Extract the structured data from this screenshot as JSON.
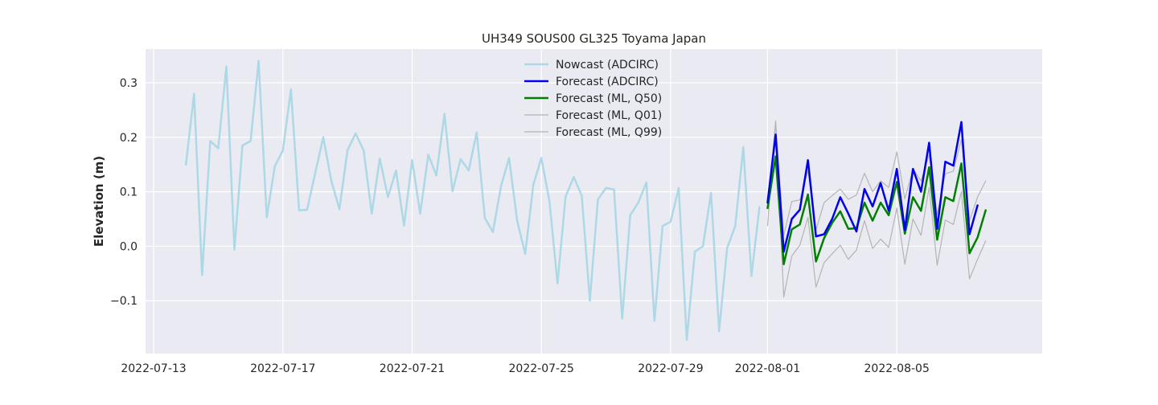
{
  "chart_data": {
    "type": "line",
    "title": "UH349 SOUS00 GL325 Toyama Japan",
    "xlabel": "",
    "ylabel": "Elevation (m)",
    "x_type": "date",
    "xlim": [
      "2022-07-12 18:00",
      "2022-08-09 12:00"
    ],
    "ylim": [
      -0.197,
      0.362
    ],
    "x_ticks": [
      "2022-07-13",
      "2022-07-17",
      "2022-07-21",
      "2022-07-25",
      "2022-07-29",
      "2022-08-01",
      "2022-08-05"
    ],
    "y_ticks": [
      -0.1,
      0.0,
      0.1,
      0.2,
      0.3
    ],
    "y_tick_labels": [
      "−0.1",
      "0.0",
      "0.1",
      "0.2",
      "0.3"
    ],
    "grid": true,
    "background": "#eaeaf2",
    "legend_position": "top-center",
    "series": [
      {
        "name": "Nowcast (ADCIRC)",
        "color": "#add8e6",
        "width": 2.5,
        "start": "2022-07-14 00:00",
        "step_hours": 6,
        "values": [
          0.15,
          0.28,
          -0.053,
          0.193,
          0.18,
          0.33,
          -0.006,
          0.185,
          0.193,
          0.34,
          0.053,
          0.147,
          0.176,
          0.288,
          0.066,
          0.067,
          0.134,
          0.2,
          0.12,
          0.068,
          0.176,
          0.207,
          0.176,
          0.06,
          0.161,
          0.09,
          0.139,
          0.038,
          0.158,
          0.06,
          0.168,
          0.13,
          0.243,
          0.101,
          0.16,
          0.139,
          0.209,
          0.052,
          0.026,
          0.11,
          0.162,
          0.047,
          -0.014,
          0.113,
          0.162,
          0.082,
          -0.068,
          0.091,
          0.127,
          0.093,
          -0.1,
          0.086,
          0.107,
          0.104,
          -0.133,
          0.057,
          0.08,
          0.117,
          -0.137,
          0.037,
          0.045,
          0.107,
          -0.172,
          -0.01,
          0.0,
          0.098,
          -0.156,
          -0.003,
          0.037,
          0.182,
          -0.055,
          0.072
        ]
      },
      {
        "name": "Forecast (ADCIRC)",
        "color": "#0000ee",
        "width": 2.5,
        "start": "2022-08-01 00:00",
        "step_hours": 6,
        "values": [
          0.08,
          0.205,
          -0.01,
          0.05,
          0.067,
          0.158,
          0.018,
          0.022,
          0.05,
          0.09,
          0.06,
          0.027,
          0.105,
          0.073,
          0.116,
          0.065,
          0.142,
          0.03,
          0.142,
          0.1,
          0.19,
          0.032,
          0.155,
          0.148,
          0.228,
          0.022,
          0.075
        ]
      },
      {
        "name": "Forecast (ML, Q50)",
        "color": "#008000",
        "width": 2.5,
        "start": "2022-08-01 00:00",
        "step_hours": 6,
        "values": [
          0.07,
          0.165,
          -0.033,
          0.031,
          0.04,
          0.095,
          -0.028,
          0.015,
          0.043,
          0.064,
          0.032,
          0.033,
          0.08,
          0.047,
          0.08,
          0.057,
          0.118,
          0.023,
          0.09,
          0.065,
          0.145,
          0.012,
          0.09,
          0.083,
          0.152,
          -0.013,
          0.016,
          0.066
        ]
      },
      {
        "name": "Forecast (ML, Q01)",
        "color": "#b4b4b4",
        "width": 1.2,
        "start": "2022-08-01 00:00",
        "step_hours": 6,
        "values": [
          0.038,
          0.23,
          -0.093,
          -0.018,
          0.002,
          0.053,
          -0.075,
          -0.03,
          -0.014,
          0.002,
          -0.024,
          -0.007,
          0.047,
          -0.004,
          0.013,
          -0.002,
          0.07,
          -0.033,
          0.05,
          0.02,
          0.108,
          -0.035,
          0.048,
          0.04,
          0.1,
          -0.06,
          -0.024,
          0.01
        ]
      },
      {
        "name": "Forecast (ML, Q99)",
        "color": "#b4b4b4",
        "width": 1.2,
        "start": "2022-08-01 00:00",
        "step_hours": 6,
        "values": [
          0.072,
          0.228,
          0.02,
          0.082,
          0.085,
          0.139,
          0.03,
          0.08,
          0.093,
          0.105,
          0.086,
          0.094,
          0.134,
          0.1,
          0.12,
          0.108,
          0.173,
          0.087,
          0.142,
          0.12,
          0.168,
          0.059,
          0.133,
          0.138,
          0.196,
          0.047,
          0.09,
          0.12
        ]
      }
    ]
  }
}
